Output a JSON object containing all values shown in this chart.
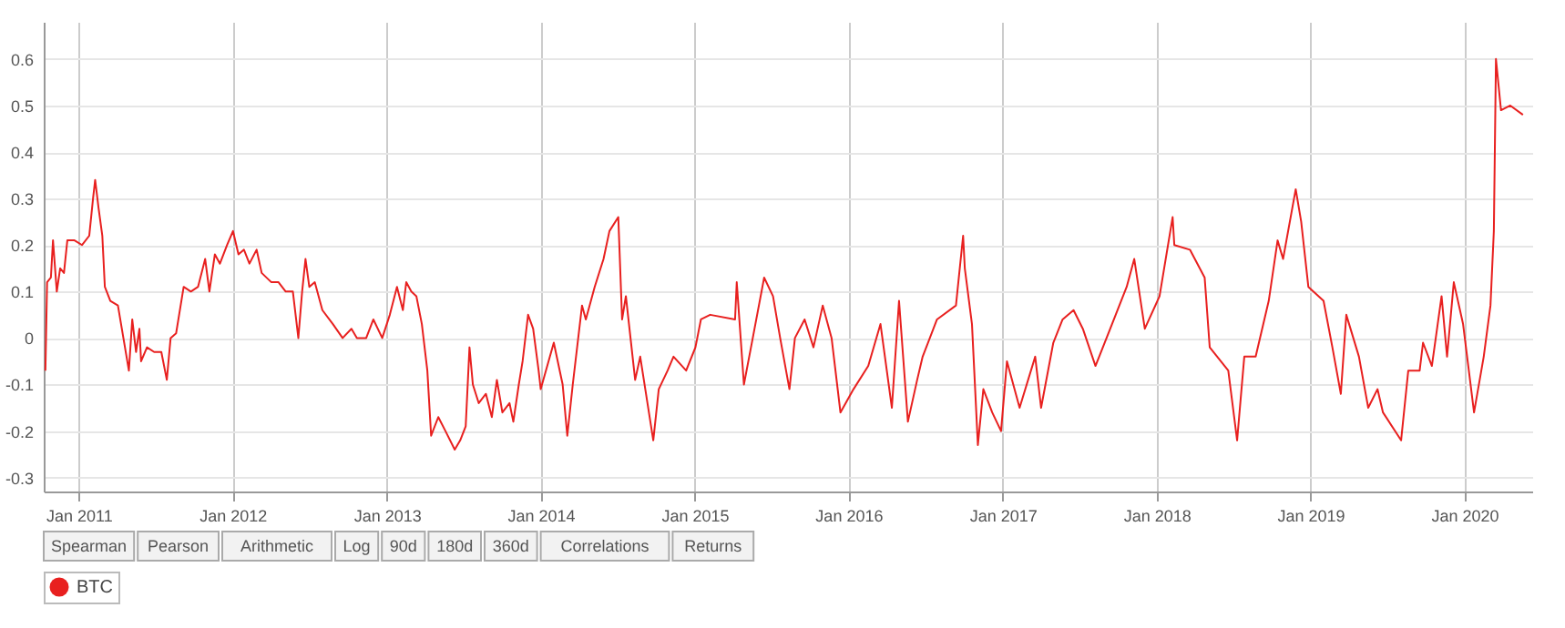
{
  "chart_data": {
    "type": "line",
    "xlim": [
      "2010-10-10",
      "2020-06-10"
    ],
    "xticks": [
      {
        "value": "2011-01-01",
        "label": "Jan 2011"
      },
      {
        "value": "2012-01-01",
        "label": "Jan 2012"
      },
      {
        "value": "2013-01-01",
        "label": "Jan 2013"
      },
      {
        "value": "2014-01-01",
        "label": "Jan 2014"
      },
      {
        "value": "2015-01-01",
        "label": "Jan 2015"
      },
      {
        "value": "2016-01-01",
        "label": "Jan 2016"
      },
      {
        "value": "2017-01-01",
        "label": "Jan 2017"
      },
      {
        "value": "2018-01-01",
        "label": "Jan 2018"
      },
      {
        "value": "2019-01-01",
        "label": "Jan 2019"
      },
      {
        "value": "2020-01-01",
        "label": "Jan 2020"
      }
    ],
    "ylim": [
      -0.33,
      0.68
    ],
    "yticks": [
      -0.3,
      -0.2,
      -0.1,
      0,
      0.1,
      0.2,
      0.3,
      0.4,
      0.5,
      0.6
    ],
    "grid": true,
    "legend": "bottom left",
    "marker": "none",
    "line_style": "solid",
    "annotations": [
      "Spearman",
      "Pearson",
      "Arithmetic",
      "Log",
      "90d",
      "180d",
      "360d",
      "Correlations",
      "Returns"
    ],
    "x": [
      "2010-10-14",
      "2010-10-18",
      "2010-10-27",
      "2010-11-01",
      "2010-11-10",
      "2010-11-18",
      "2010-11-27",
      "2010-12-05",
      "2010-12-22",
      "2011-01-09",
      "2011-01-26",
      "2011-02-04",
      "2011-02-09",
      "2011-02-17",
      "2011-02-26",
      "2011-03-04",
      "2011-03-17",
      "2011-04-04",
      "2011-04-17",
      "2011-04-30",
      "2011-05-08",
      "2011-05-17",
      "2011-05-25",
      "2011-05-29",
      "2011-06-12",
      "2011-06-29",
      "2011-07-16",
      "2011-07-29",
      "2011-08-07",
      "2011-08-20",
      "2011-09-07",
      "2011-09-24",
      "2011-10-11",
      "2011-10-28",
      "2011-11-07",
      "2011-11-20",
      "2011-12-02",
      "2011-12-19",
      "2012-01-02",
      "2012-01-15",
      "2012-01-28",
      "2012-02-10",
      "2012-02-27",
      "2012-03-10",
      "2012-04-02",
      "2012-04-19",
      "2012-05-06",
      "2012-05-23",
      "2012-06-05",
      "2012-06-14",
      "2012-06-22",
      "2012-07-01",
      "2012-07-14",
      "2012-08-01",
      "2012-08-26",
      "2012-09-18",
      "2012-10-09",
      "2012-10-22",
      "2012-11-13",
      "2012-11-30",
      "2012-12-21",
      "2013-01-08",
      "2013-01-25",
      "2013-02-08",
      "2013-02-16",
      "2013-02-28",
      "2013-03-12",
      "2013-03-25",
      "2013-04-07",
      "2013-04-16",
      "2013-05-03",
      "2013-05-20",
      "2013-06-11",
      "2013-06-24",
      "2013-07-07",
      "2013-07-16",
      "2013-07-24",
      "2013-08-07",
      "2013-08-24",
      "2013-09-07",
      "2013-09-19",
      "2013-10-02",
      "2013-10-19",
      "2013-10-28",
      "2013-11-10",
      "2013-11-19",
      "2013-12-02",
      "2013-12-14",
      "2013-12-27",
      "2014-01-01",
      "2014-02-01",
      "2014-02-22",
      "2014-03-05",
      "2014-03-18",
      "2014-04-09",
      "2014-04-18",
      "2014-05-09",
      "2014-05-30",
      "2014-06-13",
      "2014-07-04",
      "2014-07-13",
      "2014-07-22",
      "2014-08-13",
      "2014-08-25",
      "2014-09-25",
      "2014-10-08",
      "2014-10-29",
      "2014-11-12",
      "2014-12-12",
      "2015-01-03",
      "2015-01-16",
      "2015-02-07",
      "2015-04-07",
      "2015-04-11",
      "2015-04-28",
      "2015-05-19",
      "2015-06-15",
      "2015-07-06",
      "2015-07-23",
      "2015-08-14",
      "2015-08-27",
      "2015-09-19",
      "2015-10-10",
      "2015-11-01",
      "2015-11-22",
      "2015-12-13",
      "2016-01-13",
      "2016-02-17",
      "2016-03-17",
      "2016-04-13",
      "2016-04-30",
      "2016-05-21",
      "2016-06-12",
      "2016-06-25",
      "2016-07-29",
      "2016-09-12",
      "2016-09-29",
      "2016-10-03",
      "2016-10-20",
      "2016-11-03",
      "2016-11-16",
      "2016-12-07",
      "2016-12-28",
      "2017-01-11",
      "2017-02-10",
      "2017-03-19",
      "2017-04-02",
      "2017-05-01",
      "2017-05-23",
      "2017-06-18",
      "2017-07-10",
      "2017-08-09",
      "2017-09-13",
      "2017-10-22",
      "2017-11-09",
      "2017-12-04",
      "2018-01-08",
      "2018-02-08",
      "2018-02-12",
      "2018-03-21",
      "2018-04-25",
      "2018-05-07",
      "2018-06-20",
      "2018-07-11",
      "2018-07-28",
      "2018-08-24",
      "2018-09-24",
      "2018-10-15",
      "2018-10-28",
      "2018-11-27",
      "2018-12-10",
      "2018-12-27",
      "2019-02-01",
      "2019-02-22",
      "2019-03-14",
      "2019-03-27",
      "2019-04-26",
      "2019-05-18",
      "2019-06-09",
      "2019-06-22",
      "2019-08-04",
      "2019-08-21",
      "2019-09-17",
      "2019-09-25",
      "2019-10-16",
      "2019-11-08",
      "2019-11-21",
      "2019-12-07",
      "2019-12-29",
      "2020-01-24",
      "2020-02-16",
      "2020-03-03",
      "2020-03-11",
      "2020-03-16",
      "2020-03-28",
      "2020-04-19",
      "2020-05-19"
    ],
    "series": [
      {
        "name": "BTC",
        "color": "#e8201f",
        "values": [
          -0.07,
          0.12,
          0.13,
          0.21,
          0.1,
          0.15,
          0.14,
          0.21,
          0.21,
          0.2,
          0.22,
          0.3,
          0.34,
          0.28,
          0.22,
          0.11,
          0.08,
          0.07,
          0.0,
          -0.07,
          0.04,
          -0.03,
          0.02,
          -0.05,
          -0.02,
          -0.03,
          -0.03,
          -0.09,
          0.0,
          0.01,
          0.11,
          0.1,
          0.11,
          0.17,
          0.1,
          0.18,
          0.16,
          0.2,
          0.23,
          0.18,
          0.19,
          0.16,
          0.19,
          0.14,
          0.12,
          0.12,
          0.1,
          0.1,
          0.0,
          0.1,
          0.17,
          0.11,
          0.12,
          0.06,
          0.03,
          0.0,
          0.02,
          0.0,
          0.0,
          0.04,
          0.0,
          0.05,
          0.11,
          0.06,
          0.12,
          0.1,
          0.09,
          0.03,
          -0.07,
          -0.21,
          -0.17,
          -0.2,
          -0.24,
          -0.22,
          -0.19,
          -0.02,
          -0.1,
          -0.14,
          -0.12,
          -0.17,
          -0.09,
          -0.16,
          -0.14,
          -0.18,
          -0.1,
          -0.05,
          0.05,
          0.02,
          -0.07,
          -0.11,
          -0.01,
          -0.1,
          -0.21,
          -0.1,
          0.07,
          0.04,
          0.11,
          0.17,
          0.23,
          0.26,
          0.04,
          0.09,
          -0.09,
          -0.04,
          -0.22,
          -0.11,
          -0.07,
          -0.04,
          -0.07,
          -0.02,
          0.04,
          0.05,
          0.04,
          0.12,
          -0.1,
          0.0,
          0.13,
          0.09,
          0.0,
          -0.11,
          0.0,
          0.04,
          -0.02,
          0.07,
          0.0,
          -0.16,
          -0.11,
          -0.06,
          0.03,
          -0.15,
          0.08,
          -0.18,
          -0.09,
          -0.04,
          0.04,
          0.07,
          0.22,
          0.15,
          0.03,
          -0.23,
          -0.11,
          -0.16,
          -0.2,
          -0.05,
          -0.15,
          -0.04,
          -0.15,
          -0.01,
          0.04,
          0.06,
          0.02,
          -0.06,
          0.02,
          0.11,
          0.17,
          0.02,
          0.09,
          0.26,
          0.2,
          0.19,
          0.13,
          -0.02,
          -0.07,
          -0.22,
          -0.04,
          -0.04,
          0.08,
          0.21,
          0.17,
          0.32,
          0.25,
          0.11,
          0.08,
          -0.02,
          -0.12,
          0.05,
          -0.04,
          -0.15,
          -0.11,
          -0.16,
          -0.22,
          -0.07,
          -0.07,
          -0.01,
          -0.06,
          0.09,
          -0.04,
          0.12,
          0.03,
          -0.16,
          -0.04,
          0.07,
          0.23,
          0.6,
          0.49,
          0.5,
          0.48
        ]
      }
    ]
  }
}
